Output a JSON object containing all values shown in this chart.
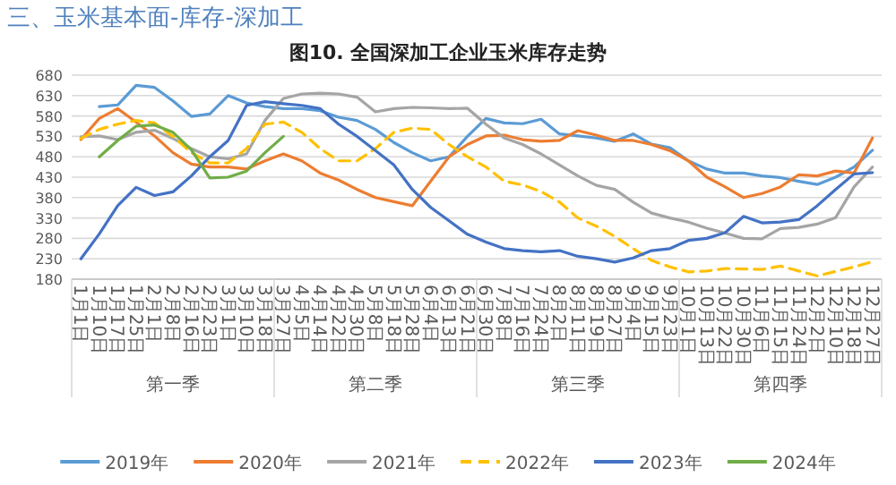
{
  "chart_data": {
    "type": "line",
    "title": "图10. 全国深加工企业玉米库存走势",
    "annotations": [
      "三、玉米基本面-库存-深加工",
      "第一季",
      "第二季",
      "第三季",
      "第四季"
    ],
    "categories": [
      "1月1日",
      "1月10日",
      "1月17日",
      "1月25日",
      "2月1日",
      "2月8日",
      "2月16日",
      "2月23日",
      "3月1日",
      "3月10日",
      "3月18日",
      "3月27日",
      "4月5日",
      "4月14日",
      "4月22日",
      "4月30日",
      "5月8日",
      "5月18日",
      "5月28日",
      "6月4日",
      "6月13日",
      "6月21日",
      "6月30日",
      "7月8日",
      "7月16日",
      "7月24日",
      "8月2日",
      "8月11日",
      "8月19日",
      "8月27日",
      "9月4日",
      "9月15日",
      "9月23日",
      "10月1日",
      "10月13日",
      "10月22日",
      "10月30日",
      "11月6日",
      "11月15日",
      "11月24日",
      "12月2日",
      "12月10日",
      "12月18日",
      "12月27日"
    ],
    "series": [
      {
        "name": "2019年",
        "color": "#5b9bd5",
        "values": [
          null,
          603,
          607,
          655,
          650,
          617,
          579,
          585,
          630,
          612,
          603,
          598,
          598,
          593,
          577,
          569,
          547,
          515,
          490,
          470,
          480,
          530,
          574,
          563,
          561,
          572,
          536,
          531,
          526,
          518,
          536,
          511,
          502,
          470,
          450,
          440,
          440,
          433,
          429,
          420,
          412,
          430,
          455,
          496
        ]
      },
      {
        "name": "2020年",
        "color": "#ed7d31",
        "values": [
          522,
          574,
          598,
          565,
          531,
          490,
          462,
          455,
          455,
          450,
          470,
          487,
          470,
          440,
          423,
          400,
          380,
          370,
          360,
          420,
          480,
          510,
          531,
          533,
          522,
          518,
          520,
          544,
          533,
          520,
          520,
          510,
          495,
          470,
          430,
          406,
          380,
          390,
          406,
          436,
          433,
          445,
          440,
          526
        ]
      },
      {
        "name": "2021年",
        "color": "#a5a5a5",
        "values": [
          529,
          531,
          522,
          540,
          545,
          525,
          500,
          480,
          475,
          487,
          569,
          623,
          634,
          636,
          634,
          626,
          590,
          598,
          601,
          600,
          598,
          599,
          560,
          526,
          510,
          487,
          460,
          433,
          410,
          400,
          369,
          342,
          330,
          320,
          305,
          293,
          280,
          279,
          304,
          307,
          315,
          331,
          406,
          455
        ]
      },
      {
        "name": "2022年",
        "color": "#ffc000",
        "line_style": "dashed",
        "values": [
          525,
          547,
          560,
          569,
          563,
          530,
          490,
          465,
          465,
          500,
          560,
          565,
          540,
          500,
          470,
          470,
          500,
          540,
          550,
          547,
          510,
          480,
          455,
          420,
          411,
          395,
          369,
          330,
          310,
          285,
          255,
          226,
          210,
          198,
          200,
          206,
          205,
          204,
          212,
          200,
          188,
          199,
          210,
          223
        ]
      },
      {
        "name": "2023年",
        "color": "#4472c4",
        "values": [
          230,
          291,
          360,
          405,
          385,
          394,
          433,
          480,
          520,
          606,
          615,
          610,
          606,
          598,
          560,
          530,
          495,
          460,
          400,
          356,
          323,
          290,
          271,
          255,
          250,
          247,
          250,
          236,
          230,
          222,
          232,
          250,
          255,
          275,
          280,
          294,
          334,
          318,
          320,
          326,
          360,
          400,
          438,
          441
        ]
      },
      {
        "name": "2024年",
        "color": "#70ad47",
        "values": [
          null,
          480,
          520,
          555,
          558,
          540,
          497,
          428,
          430,
          445,
          490,
          530,
          null,
          null,
          null,
          null,
          null,
          null,
          null,
          null,
          null,
          null,
          null,
          null,
          null,
          null,
          null,
          null,
          null,
          null,
          null,
          null,
          null,
          null,
          null,
          null,
          null,
          null,
          null,
          null,
          null,
          null,
          null,
          null
        ]
      }
    ],
    "ylim": [
      180,
      680
    ],
    "yticks": [
      180,
      230,
      280,
      330,
      380,
      430,
      480,
      530,
      580,
      630,
      680
    ],
    "grid": "y",
    "legend": "bottom"
  }
}
